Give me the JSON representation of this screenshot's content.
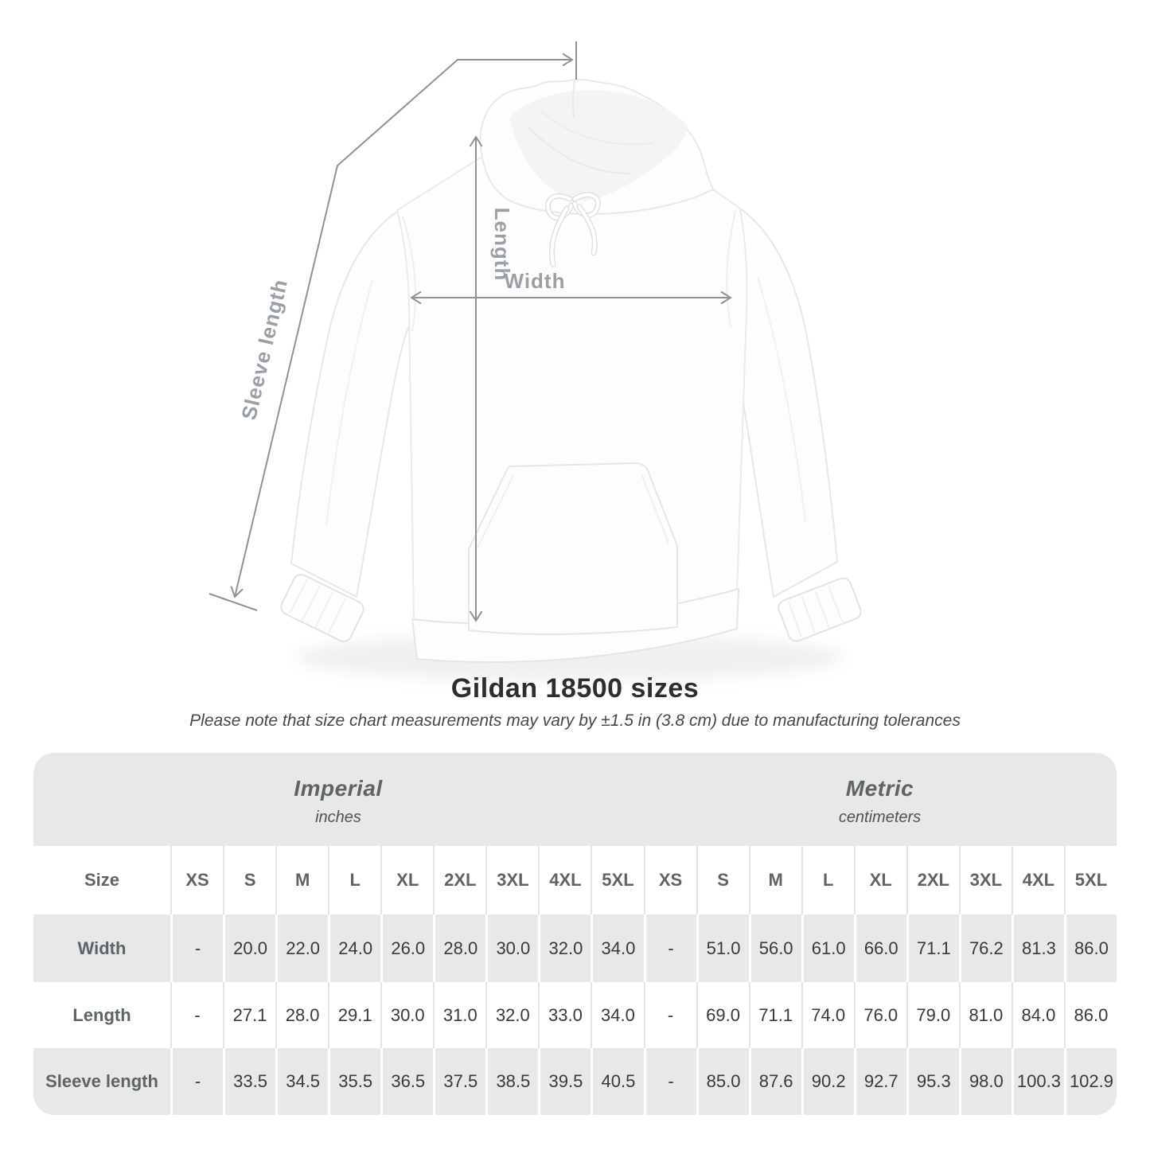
{
  "diagram": {
    "labels": {
      "length": "Length",
      "width": "Width",
      "sleeve": "Sleeve length"
    }
  },
  "heading": {
    "title": "Gildan 18500 sizes",
    "subtitle": "Please note that size chart measurements may vary by ±1.5 in (3.8 cm) due to manufacturing tolerances"
  },
  "table": {
    "corner_label": "Size",
    "sections": [
      {
        "name": "Imperial",
        "unit": "inches",
        "sizes": [
          "XS",
          "S",
          "M",
          "L",
          "XL",
          "2XL",
          "3XL",
          "4XL",
          "5XL"
        ]
      },
      {
        "name": "Metric",
        "unit": "centimeters",
        "sizes": [
          "XS",
          "S",
          "M",
          "L",
          "XL",
          "2XL",
          "3XL",
          "4XL",
          "5XL"
        ]
      }
    ],
    "rows": [
      {
        "label": "Width",
        "imperial": [
          "-",
          "20.0",
          "22.0",
          "24.0",
          "26.0",
          "28.0",
          "30.0",
          "32.0",
          "34.0"
        ],
        "metric": [
          "-",
          "51.0",
          "56.0",
          "61.0",
          "66.0",
          "71.1",
          "76.2",
          "81.3",
          "86.0"
        ]
      },
      {
        "label": "Length",
        "imperial": [
          "-",
          "27.1",
          "28.0",
          "29.1",
          "30.0",
          "31.0",
          "32.0",
          "33.0",
          "34.0"
        ],
        "metric": [
          "-",
          "69.0",
          "71.1",
          "74.0",
          "76.0",
          "79.0",
          "81.0",
          "84.0",
          "86.0"
        ]
      },
      {
        "label": "Sleeve length",
        "imperial": [
          "-",
          "33.5",
          "34.5",
          "35.5",
          "36.5",
          "37.5",
          "38.5",
          "39.5",
          "40.5"
        ],
        "metric": [
          "-",
          "85.0",
          "87.6",
          "90.2",
          "92.7",
          "95.3",
          "98.0",
          "100.3",
          "102.9"
        ]
      }
    ]
  },
  "colors": {
    "table_band_gray": "#e8e8e8",
    "measure_line": "#8d9399",
    "measure_label": "#9aa0a5",
    "title_text": "#2e2e2e",
    "number_text": "#373a3c",
    "header_text": "#5c6468"
  }
}
